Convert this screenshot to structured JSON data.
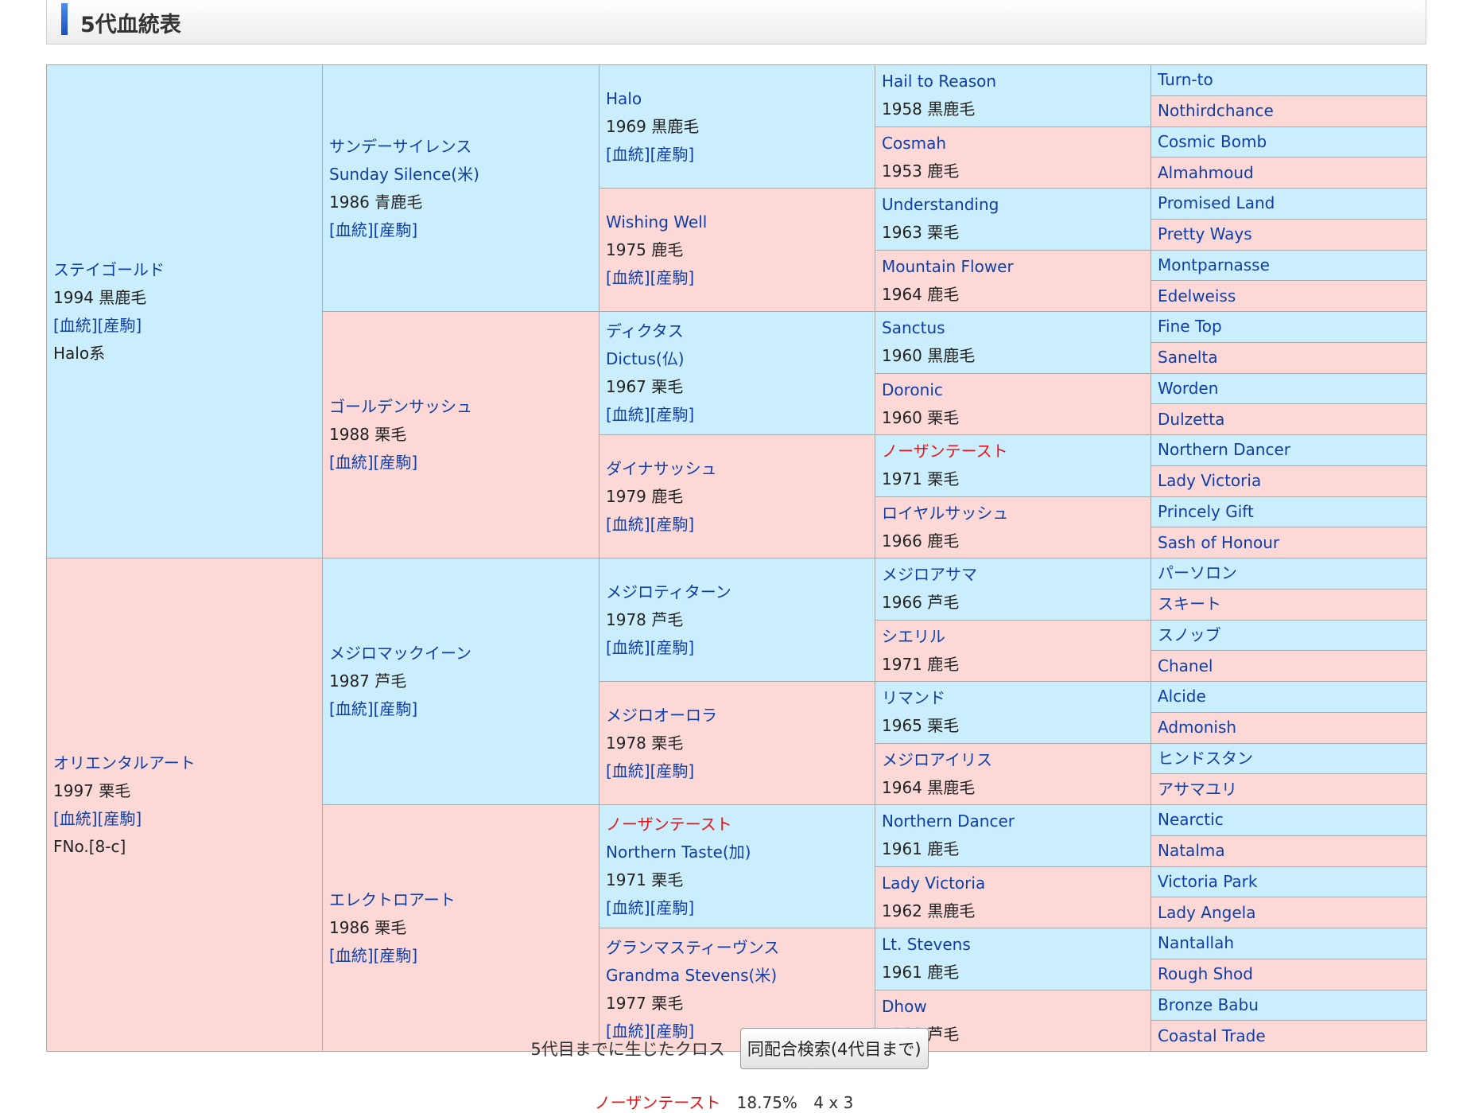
{
  "section": {
    "title": "5代血統表"
  },
  "links": {
    "pedigree": "[血統]",
    "progeny": "[産駒]"
  },
  "sire": {
    "name": "ステイゴールド",
    "year": "1994 黒鹿毛",
    "extra": "Halo系"
  },
  "dam": {
    "name": "オリエンタルアート",
    "year": "1997 栗毛",
    "extra": "FNo.[8-c]"
  },
  "g2": [
    {
      "name": "サンデーサイレンス",
      "en": "Sunday Silence(米)",
      "year": "1986 青鹿毛"
    },
    {
      "name": "ゴールデンサッシュ",
      "year": "1988 栗毛"
    },
    {
      "name": "メジロマックイーン",
      "year": "1987 芦毛"
    },
    {
      "name": "エレクトロアート",
      "year": "1986 栗毛"
    }
  ],
  "g3": [
    {
      "name": "Halo",
      "year": "1969 黒鹿毛"
    },
    {
      "name": "Wishing Well",
      "year": "1975 鹿毛"
    },
    {
      "name": "ディクタス",
      "en": "Dictus(仏)",
      "year": "1967 栗毛"
    },
    {
      "name": "ダイナサッシュ",
      "year": "1979 鹿毛"
    },
    {
      "name": "メジロティターン",
      "year": "1978 芦毛"
    },
    {
      "name": "メジロオーロラ",
      "year": "1978 栗毛"
    },
    {
      "name": "ノーザンテースト",
      "en": "Northern Taste(加)",
      "year": "1971 栗毛"
    },
    {
      "name": "グランマスティーヴンス",
      "en": "Grandma Stevens(米)",
      "year": "1977 栗毛"
    }
  ],
  "g4": [
    {
      "name": "Hail to Reason",
      "year": "1958 黒鹿毛"
    },
    {
      "name": "Cosmah",
      "year": "1953 鹿毛"
    },
    {
      "name": "Understanding",
      "year": "1963 栗毛"
    },
    {
      "name": "Mountain Flower",
      "year": "1964 鹿毛"
    },
    {
      "name": "Sanctus",
      "year": "1960 黒鹿毛"
    },
    {
      "name": "Doronic",
      "year": "1960 栗毛"
    },
    {
      "name": "ノーザンテースト",
      "year": "1971 栗毛"
    },
    {
      "name": "ロイヤルサッシュ",
      "year": "1966 鹿毛"
    },
    {
      "name": "メジロアサマ",
      "year": "1966 芦毛"
    },
    {
      "name": "シエリル",
      "year": "1971 鹿毛"
    },
    {
      "name": "リマンド",
      "year": "1965 栗毛"
    },
    {
      "name": "メジロアイリス",
      "year": "1964 黒鹿毛"
    },
    {
      "name": "Northern Dancer",
      "year": "1961 鹿毛"
    },
    {
      "name": "Lady Victoria",
      "year": "1962 黒鹿毛"
    },
    {
      "name": "Lt. Stevens",
      "year": "1961 鹿毛"
    },
    {
      "name": "Dhow",
      "year": "1968 芦毛"
    }
  ],
  "g5": [
    "Turn-to",
    "Nothirdchance",
    "Cosmic Bomb",
    "Almahmoud",
    "Promised Land",
    "Pretty Ways",
    "Montparnasse",
    "Edelweiss",
    "Fine Top",
    "Sanelta",
    "Worden",
    "Dulzetta",
    "Northern Dancer",
    "Lady Victoria",
    "Princely Gift",
    "Sash of Honour",
    "パーソロン",
    "スキート",
    "スノッブ",
    "Chanel",
    "Alcide",
    "Admonish",
    "ヒンドスタン",
    "アサマユリ",
    "Nearctic",
    "Natalma",
    "Victoria Park",
    "Lady Angela",
    "Nantallah",
    "Rough Shod",
    "Bronze Babu",
    "Coastal Trade"
  ],
  "cross": {
    "label": "5代目までに生じたクロス",
    "button": "同配合検索(4代目まで)",
    "horse": "ノーザンテースト",
    "percent": "18.75%",
    "generation": "4 x 3"
  },
  "colors": {
    "male_cell": "#cbeefc",
    "female_cell": "#fcd9d6",
    "link": "#0f3ea8",
    "cross_highlight": "#e8121a"
  }
}
